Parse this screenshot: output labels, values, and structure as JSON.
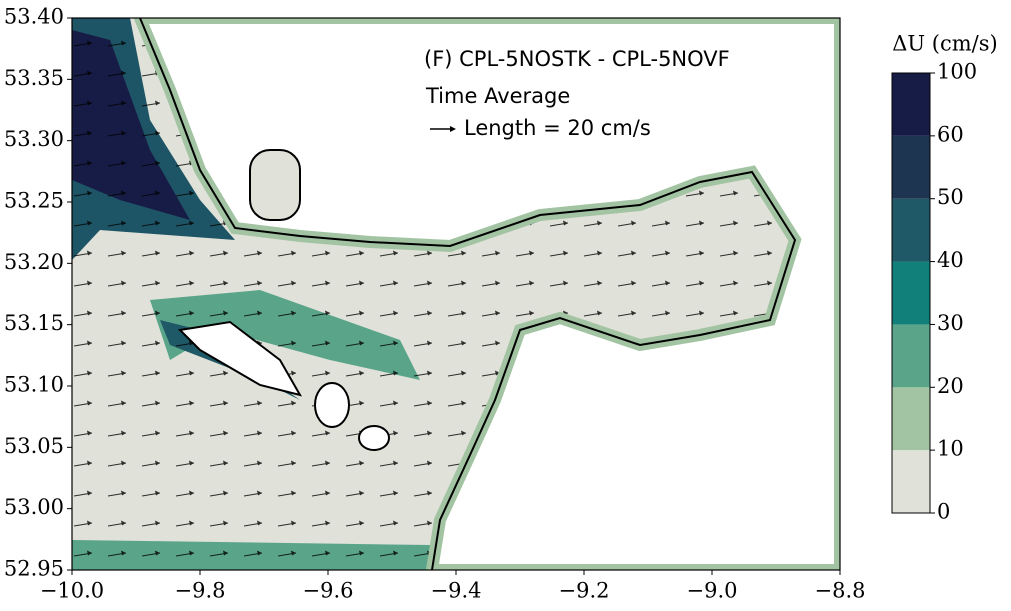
{
  "chart_data": {
    "type": "vector-map",
    "annotations": [
      "(F) CPL-5NOSTK - CPL-5NOVF",
      "Time Average",
      "Length = 20 cm/s"
    ],
    "xlim": [
      -10.0,
      -8.8
    ],
    "ylim": [
      52.95,
      53.4
    ],
    "xticks": [
      {
        "value": -10.0,
        "label": "−10.0"
      },
      {
        "value": -9.8,
        "label": "−9.8"
      },
      {
        "value": -9.6,
        "label": "−9.6"
      },
      {
        "value": -9.4,
        "label": "−9.4"
      },
      {
        "value": -9.2,
        "label": "−9.2"
      },
      {
        "value": -9.0,
        "label": "−9.0"
      },
      {
        "value": -8.8,
        "label": "−8.8"
      }
    ],
    "yticks": [
      {
        "value": 52.95,
        "label": "52.95"
      },
      {
        "value": 53.0,
        "label": "53.00"
      },
      {
        "value": 53.05,
        "label": "53.05"
      },
      {
        "value": 53.1,
        "label": "53.10"
      },
      {
        "value": 53.15,
        "label": "53.15"
      },
      {
        "value": 53.2,
        "label": "53.20"
      },
      {
        "value": 53.25,
        "label": "53.25"
      },
      {
        "value": 53.3,
        "label": "53.30"
      },
      {
        "value": 53.35,
        "label": "53.35"
      },
      {
        "value": 53.4,
        "label": "53.40"
      }
    ],
    "colorbar": {
      "label": "ΔU (cm/s)",
      "levels": [
        0,
        10,
        20,
        30,
        40,
        50,
        60,
        100
      ],
      "colors": [
        "#e0e1d8",
        "#a2c4a2",
        "#5aa58a",
        "#12807a",
        "#1f5866",
        "#1d3550",
        "#171c46"
      ]
    }
  }
}
